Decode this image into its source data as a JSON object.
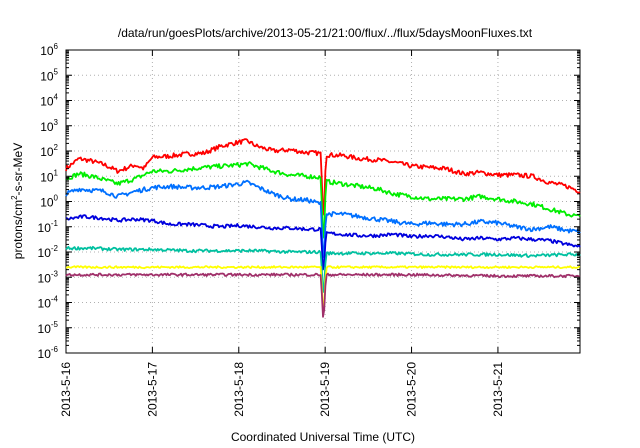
{
  "chart_data": {
    "type": "line",
    "title": "/data/run/goesPlots/archive/2013-05-21/21:00/flux/../flux/5daysMoonFluxes.txt",
    "xlabel": "Coordinated Universal Time (UTC)",
    "ylabel": {
      "pre": "protons/cm",
      "sup": "2",
      "post": "-s-sr-MeV"
    },
    "y_scale": "log",
    "ylim_exp": [
      -6,
      6
    ],
    "ytick_exponents": [
      6,
      5,
      4,
      3,
      2,
      1,
      0,
      -1,
      -2,
      -3,
      -4,
      -5,
      -6
    ],
    "ytick_base": "10",
    "x_range_days": [
      0,
      5.95
    ],
    "xticks": [
      {
        "label": "2013-5-16",
        "day": 0
      },
      {
        "label": "2013-5-17",
        "day": 1
      },
      {
        "label": "2013-5-18",
        "day": 2
      },
      {
        "label": "2013-5-19",
        "day": 3
      },
      {
        "label": "2013-5-20",
        "day": 4
      },
      {
        "label": "2013-5-21",
        "day": 5
      }
    ],
    "grid": true,
    "legend": "none",
    "dip": {
      "day": 2.98,
      "width": 0.03
    },
    "series": [
      {
        "color": "#ff0000",
        "noise": 0.09,
        "dip_floor_exp": -1,
        "points": [
          [
            0.0,
            1.3
          ],
          [
            0.15,
            1.7
          ],
          [
            0.3,
            1.6
          ],
          [
            0.45,
            1.45
          ],
          [
            0.6,
            1.2
          ],
          [
            0.8,
            1.45
          ],
          [
            0.9,
            1.3
          ],
          [
            1.0,
            1.75
          ],
          [
            1.2,
            1.8
          ],
          [
            1.4,
            1.88
          ],
          [
            1.6,
            1.92
          ],
          [
            1.8,
            2.2
          ],
          [
            2.0,
            2.35
          ],
          [
            2.1,
            2.4
          ],
          [
            2.2,
            2.2
          ],
          [
            2.4,
            2.0
          ],
          [
            2.6,
            2.05
          ],
          [
            2.75,
            1.95
          ],
          [
            2.9,
            1.92
          ],
          [
            2.96,
            1.9
          ],
          [
            3.0,
            1.85
          ],
          [
            3.2,
            1.82
          ],
          [
            3.4,
            1.7
          ],
          [
            3.6,
            1.65
          ],
          [
            3.8,
            1.55
          ],
          [
            4.0,
            1.4
          ],
          [
            4.2,
            1.35
          ],
          [
            4.4,
            1.3
          ],
          [
            4.6,
            1.1
          ],
          [
            4.8,
            1.15
          ],
          [
            5.0,
            1.05
          ],
          [
            5.2,
            1.05
          ],
          [
            5.4,
            1.0
          ],
          [
            5.6,
            0.75
          ],
          [
            5.8,
            0.6
          ],
          [
            5.95,
            0.4
          ]
        ]
      },
      {
        "color": "#00ee00",
        "noise": 0.09,
        "dip_floor_exp": -1.9,
        "points": [
          [
            0.0,
            0.9
          ],
          [
            0.15,
            1.1
          ],
          [
            0.3,
            1.0
          ],
          [
            0.45,
            0.85
          ],
          [
            0.6,
            0.7
          ],
          [
            0.8,
            0.9
          ],
          [
            1.0,
            1.2
          ],
          [
            1.2,
            1.2
          ],
          [
            1.4,
            1.28
          ],
          [
            1.6,
            1.35
          ],
          [
            1.8,
            1.4
          ],
          [
            2.0,
            1.45
          ],
          [
            2.1,
            1.5
          ],
          [
            2.2,
            1.4
          ],
          [
            2.4,
            1.2
          ],
          [
            2.6,
            1.05
          ],
          [
            2.8,
            1.0
          ],
          [
            2.96,
            0.95
          ],
          [
            3.0,
            0.8
          ],
          [
            3.2,
            0.7
          ],
          [
            3.4,
            0.6
          ],
          [
            3.6,
            0.5
          ],
          [
            3.8,
            0.3
          ],
          [
            4.0,
            0.2
          ],
          [
            4.2,
            0.1
          ],
          [
            4.4,
            0.1
          ],
          [
            4.6,
            0.1
          ],
          [
            4.8,
            0.2
          ],
          [
            5.0,
            0.1
          ],
          [
            5.2,
            0.0
          ],
          [
            5.4,
            -0.1
          ],
          [
            5.6,
            -0.3
          ],
          [
            5.8,
            -0.5
          ],
          [
            5.95,
            -0.6
          ]
        ]
      },
      {
        "color": "#0070ff",
        "noise": 0.09,
        "dip_floor_exp": -2.6,
        "points": [
          [
            0.0,
            0.3
          ],
          [
            0.15,
            0.5
          ],
          [
            0.3,
            0.45
          ],
          [
            0.45,
            0.4
          ],
          [
            0.6,
            0.2
          ],
          [
            0.8,
            0.4
          ],
          [
            1.0,
            0.55
          ],
          [
            1.2,
            0.6
          ],
          [
            1.4,
            0.55
          ],
          [
            1.6,
            0.55
          ],
          [
            1.8,
            0.6
          ],
          [
            2.0,
            0.7
          ],
          [
            2.1,
            0.75
          ],
          [
            2.2,
            0.6
          ],
          [
            2.4,
            0.3
          ],
          [
            2.6,
            0.1
          ],
          [
            2.8,
            0.05
          ],
          [
            2.96,
            -0.1
          ],
          [
            3.0,
            -0.5
          ],
          [
            3.2,
            -0.5
          ],
          [
            3.4,
            -0.6
          ],
          [
            3.6,
            -0.7
          ],
          [
            3.8,
            -0.8
          ],
          [
            4.0,
            -0.9
          ],
          [
            4.2,
            -0.85
          ],
          [
            4.4,
            -0.9
          ],
          [
            4.6,
            -0.9
          ],
          [
            4.8,
            -0.8
          ],
          [
            5.0,
            -0.85
          ],
          [
            5.2,
            -1.0
          ],
          [
            5.4,
            -1.1
          ],
          [
            5.6,
            -1.0
          ],
          [
            5.8,
            -1.15
          ],
          [
            5.95,
            -1.2
          ]
        ]
      },
      {
        "color": "#0000dd",
        "noise": 0.07,
        "dip_floor_exp": -3.0,
        "points": [
          [
            0.0,
            -0.7
          ],
          [
            0.2,
            -0.6
          ],
          [
            0.4,
            -0.65
          ],
          [
            0.6,
            -0.75
          ],
          [
            0.8,
            -0.7
          ],
          [
            1.0,
            -0.75
          ],
          [
            1.2,
            -0.9
          ],
          [
            1.4,
            -0.9
          ],
          [
            1.6,
            -0.95
          ],
          [
            1.8,
            -1.0
          ],
          [
            2.0,
            -0.95
          ],
          [
            2.2,
            -1.0
          ],
          [
            2.4,
            -1.05
          ],
          [
            2.6,
            -1.05
          ],
          [
            2.8,
            -1.1
          ],
          [
            2.96,
            -1.1
          ],
          [
            3.0,
            -1.25
          ],
          [
            3.2,
            -1.3
          ],
          [
            3.4,
            -1.35
          ],
          [
            3.6,
            -1.35
          ],
          [
            3.8,
            -1.3
          ],
          [
            4.0,
            -1.4
          ],
          [
            4.2,
            -1.35
          ],
          [
            4.4,
            -1.4
          ],
          [
            4.6,
            -1.5
          ],
          [
            4.8,
            -1.45
          ],
          [
            5.0,
            -1.5
          ],
          [
            5.2,
            -1.45
          ],
          [
            5.4,
            -1.5
          ],
          [
            5.6,
            -1.55
          ],
          [
            5.8,
            -1.7
          ],
          [
            5.95,
            -1.8
          ]
        ]
      },
      {
        "color": "#00c0a0",
        "noise": 0.06,
        "dip_floor_exp": -3.9,
        "points": [
          [
            0.0,
            -1.85
          ],
          [
            0.3,
            -1.85
          ],
          [
            0.6,
            -1.9
          ],
          [
            1.0,
            -1.9
          ],
          [
            1.4,
            -1.95
          ],
          [
            1.8,
            -1.95
          ],
          [
            2.2,
            -1.95
          ],
          [
            2.6,
            -2.0
          ],
          [
            2.96,
            -2.0
          ],
          [
            3.0,
            -2.05
          ],
          [
            3.4,
            -2.05
          ],
          [
            3.8,
            -2.05
          ],
          [
            4.2,
            -2.1
          ],
          [
            4.6,
            -2.1
          ],
          [
            5.0,
            -2.1
          ],
          [
            5.4,
            -2.15
          ],
          [
            5.8,
            -2.1
          ],
          [
            5.95,
            -2.1
          ]
        ]
      },
      {
        "color": "#ffff00",
        "noise": 0.04,
        "dip_floor_exp": -4.7,
        "points": [
          [
            0.0,
            -2.6
          ],
          [
            1.0,
            -2.6
          ],
          [
            2.0,
            -2.6
          ],
          [
            2.96,
            -2.6
          ],
          [
            3.0,
            -2.6
          ],
          [
            4.0,
            -2.6
          ],
          [
            5.0,
            -2.6
          ],
          [
            5.95,
            -2.6
          ]
        ]
      },
      {
        "color": "#a0306a",
        "noise": 0.05,
        "dip_floor_exp": -4.9,
        "points": [
          [
            0.0,
            -2.9
          ],
          [
            1.0,
            -2.9
          ],
          [
            2.0,
            -2.9
          ],
          [
            2.96,
            -2.9
          ],
          [
            3.0,
            -2.9
          ],
          [
            4.0,
            -2.9
          ],
          [
            5.0,
            -2.95
          ],
          [
            5.95,
            -2.95
          ]
        ]
      }
    ]
  }
}
